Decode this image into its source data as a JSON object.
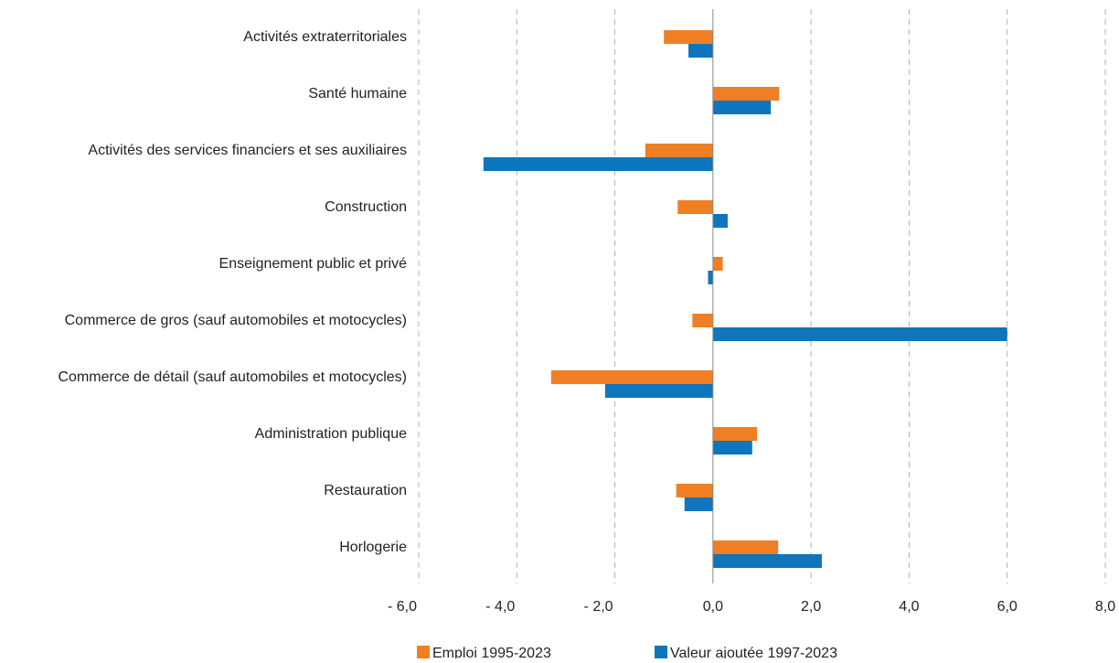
{
  "chart_data": {
    "type": "bar",
    "orientation": "horizontal",
    "categories": [
      "Activités extraterritoriales",
      "Santé humaine",
      "Activités des services financiers et ses auxiliaires",
      "Construction",
      "Enseignement public et privé",
      "Commerce de gros (sauf automobiles et motocycles)",
      "Commerce de détail (sauf automobiles et motocycles)",
      "Administration publique",
      "Restauration",
      "Horlogerie"
    ],
    "series": [
      {
        "name": "Emploi 1995-2023",
        "color": "#F07F24",
        "values": [
          -1.0,
          1.35,
          -1.38,
          -0.72,
          0.2,
          -0.42,
          -3.3,
          0.9,
          -0.75,
          1.33
        ]
      },
      {
        "name": "Valeur ajoutée 1997-2023",
        "color": "#0F75BD",
        "values": [
          -0.5,
          1.18,
          -4.68,
          0.3,
          -0.1,
          6.0,
          -2.2,
          0.8,
          -0.58,
          2.22
        ]
      }
    ],
    "xlim": [
      -6.0,
      8.0
    ],
    "x_ticks": [
      -6,
      -4,
      -2,
      0,
      2,
      4,
      6,
      8
    ],
    "x_tick_labels": [
      "- 6,0",
      "- 4,0",
      "- 2,0",
      "0,0",
      "2,0",
      "4,0",
      "6,0",
      "8,0"
    ],
    "grid": "vertical-dashed",
    "legend_position": "bottom",
    "title": "",
    "xlabel": "",
    "ylabel": ""
  }
}
